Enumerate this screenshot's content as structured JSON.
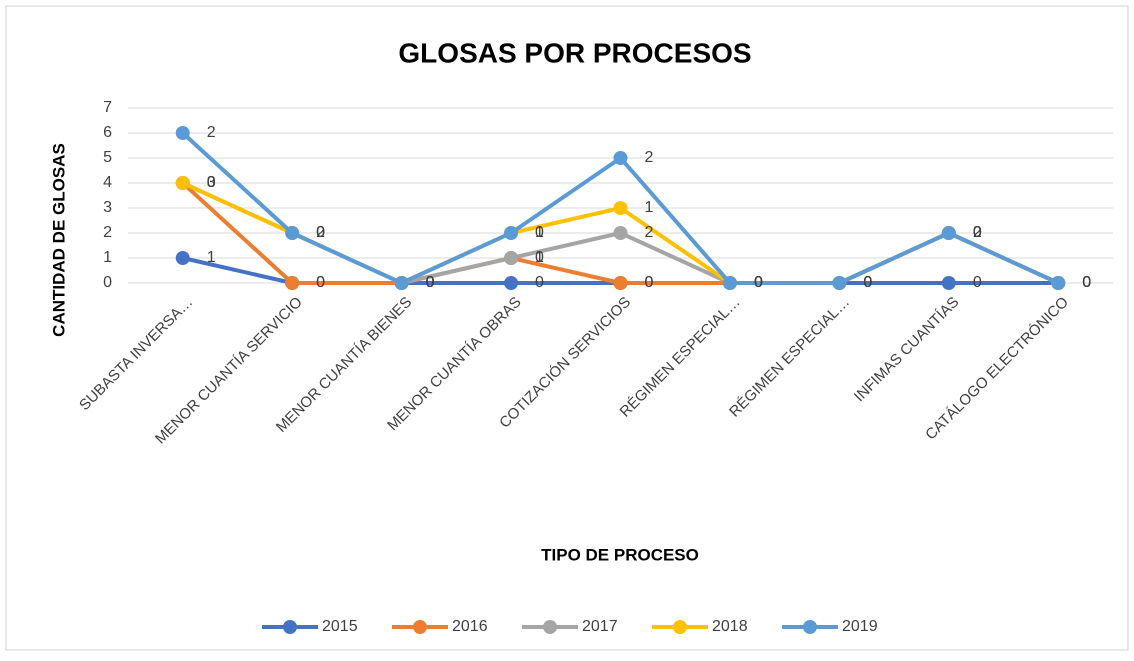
{
  "chart_data": {
    "type": "line",
    "stacked": true,
    "title": "GLOSAS POR PROCESOS",
    "x_label": "TIPO DE PROCESO",
    "y_label": "CANTIDAD DE GLOSAS",
    "categories": [
      "SUBASTA INVERSA…",
      "MENOR CUANTÍA SERVICIO",
      "MENOR CUANTÍA BIENES",
      "MENOR CUANTÍA OBRAS",
      "COTIZACIÓN SERVICIOS",
      "RÉGIMEN ESPECIAL…",
      "RÉGIMEN ESPECIAL…",
      "INFIMAS CUANTÍAS",
      "CATÁLOGO ELECTRÓNICO"
    ],
    "series": [
      {
        "name": "2015",
        "color": "#4472c4",
        "values": [
          1,
          0,
          0,
          0,
          0,
          0,
          0,
          0,
          0
        ]
      },
      {
        "name": "2016",
        "color": "#ed7d31",
        "values": [
          3,
          0,
          0,
          1,
          0,
          0,
          0,
          2,
          0
        ]
      },
      {
        "name": "2017",
        "color": "#a5a5a5",
        "values": [
          0,
          2,
          0,
          0,
          2,
          0,
          0,
          0,
          0
        ]
      },
      {
        "name": "2018",
        "color": "#ffc000",
        "values": [
          0,
          0,
          0,
          1,
          1,
          0,
          0,
          0,
          0
        ]
      },
      {
        "name": "2019",
        "color": "#5b9bd5",
        "values": [
          2,
          0,
          0,
          0,
          2,
          0,
          0,
          0,
          0
        ]
      }
    ],
    "ylim": [
      0,
      7
    ],
    "yticks": [
      0,
      1,
      2,
      3,
      4,
      5,
      6,
      7
    ],
    "grid": true,
    "legend": "bottom"
  }
}
